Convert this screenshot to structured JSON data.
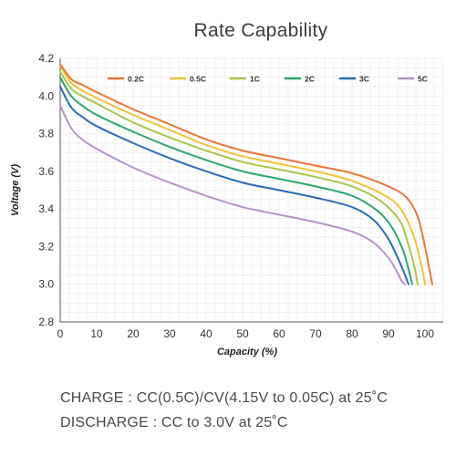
{
  "chart_data": {
    "type": "line",
    "title": "Rate Capability",
    "xlabel": "Capacity (%)",
    "ylabel": "Voltage (V)",
    "xlim": [
      0,
      105
    ],
    "ylim": [
      2.8,
      4.2
    ],
    "xticks": [
      "0",
      "10",
      "20",
      "30",
      "40",
      "50",
      "60",
      "70",
      "80",
      "90",
      "100"
    ],
    "yticks": [
      "2.8",
      "3.0",
      "3.2",
      "3.4",
      "3.6",
      "3.8",
      "4.0",
      "4.2"
    ],
    "grid": true,
    "legend_position": "top",
    "series": [
      {
        "name": "0.2C",
        "color": "#e8753a",
        "points": [
          [
            0,
            4.17
          ],
          [
            3,
            4.09
          ],
          [
            6,
            4.06
          ],
          [
            10,
            4.02
          ],
          [
            20,
            3.93
          ],
          [
            30,
            3.85
          ],
          [
            40,
            3.77
          ],
          [
            50,
            3.71
          ],
          [
            60,
            3.67
          ],
          [
            70,
            3.63
          ],
          [
            80,
            3.59
          ],
          [
            90,
            3.52
          ],
          [
            95,
            3.46
          ],
          [
            98,
            3.36
          ],
          [
            100,
            3.2
          ],
          [
            101,
            3.1
          ],
          [
            102,
            3.0
          ]
        ]
      },
      {
        "name": "0.5C",
        "color": "#f2c23a",
        "points": [
          [
            0,
            4.16
          ],
          [
            3,
            4.07
          ],
          [
            6,
            4.03
          ],
          [
            10,
            3.99
          ],
          [
            20,
            3.9
          ],
          [
            30,
            3.82
          ],
          [
            40,
            3.74
          ],
          [
            50,
            3.68
          ],
          [
            60,
            3.64
          ],
          [
            70,
            3.6
          ],
          [
            80,
            3.55
          ],
          [
            90,
            3.46
          ],
          [
            94,
            3.38
          ],
          [
            97,
            3.25
          ],
          [
            99,
            3.1
          ],
          [
            100,
            3.0
          ]
        ]
      },
      {
        "name": "1C",
        "color": "#a8c64a",
        "points": [
          [
            0,
            4.13
          ],
          [
            3,
            4.04
          ],
          [
            6,
            4.0
          ],
          [
            10,
            3.96
          ],
          [
            20,
            3.86
          ],
          [
            30,
            3.78
          ],
          [
            40,
            3.71
          ],
          [
            50,
            3.65
          ],
          [
            60,
            3.61
          ],
          [
            70,
            3.57
          ],
          [
            80,
            3.52
          ],
          [
            88,
            3.44
          ],
          [
            93,
            3.34
          ],
          [
            95,
            3.24
          ],
          [
            97,
            3.1
          ],
          [
            98,
            3.0
          ]
        ]
      },
      {
        "name": "2C",
        "color": "#2aa870",
        "points": [
          [
            0,
            4.1
          ],
          [
            3,
            4.0
          ],
          [
            6,
            3.95
          ],
          [
            10,
            3.9
          ],
          [
            20,
            3.81
          ],
          [
            30,
            3.73
          ],
          [
            40,
            3.66
          ],
          [
            50,
            3.6
          ],
          [
            60,
            3.56
          ],
          [
            70,
            3.52
          ],
          [
            80,
            3.47
          ],
          [
            87,
            3.39
          ],
          [
            91,
            3.3
          ],
          [
            94,
            3.18
          ],
          [
            95.5,
            3.08
          ],
          [
            96.5,
            3.0
          ]
        ]
      },
      {
        "name": "3C",
        "color": "#2a6cb8",
        "points": [
          [
            0,
            4.05
          ],
          [
            3,
            3.94
          ],
          [
            6,
            3.89
          ],
          [
            10,
            3.84
          ],
          [
            20,
            3.75
          ],
          [
            30,
            3.67
          ],
          [
            40,
            3.6
          ],
          [
            50,
            3.54
          ],
          [
            60,
            3.5
          ],
          [
            70,
            3.46
          ],
          [
            80,
            3.41
          ],
          [
            86,
            3.34
          ],
          [
            90,
            3.24
          ],
          [
            93,
            3.12
          ],
          [
            94.5,
            3.05
          ],
          [
            95.5,
            3.0
          ]
        ]
      },
      {
        "name": "5C",
        "color": "#b894c8",
        "points": [
          [
            0,
            3.95
          ],
          [
            3,
            3.83
          ],
          [
            6,
            3.77
          ],
          [
            10,
            3.72
          ],
          [
            20,
            3.62
          ],
          [
            30,
            3.54
          ],
          [
            40,
            3.47
          ],
          [
            50,
            3.41
          ],
          [
            60,
            3.37
          ],
          [
            70,
            3.33
          ],
          [
            80,
            3.28
          ],
          [
            86,
            3.22
          ],
          [
            90,
            3.14
          ],
          [
            92.5,
            3.06
          ],
          [
            93.5,
            3.02
          ],
          [
            94.5,
            3.0
          ]
        ]
      }
    ]
  },
  "notes": {
    "charge": "CHARGE : CC(0.5C)/CV(4.15V to 0.05C) at 25˚C",
    "discharge": "DISCHARGE : CC to 3.0V at 25˚C"
  }
}
